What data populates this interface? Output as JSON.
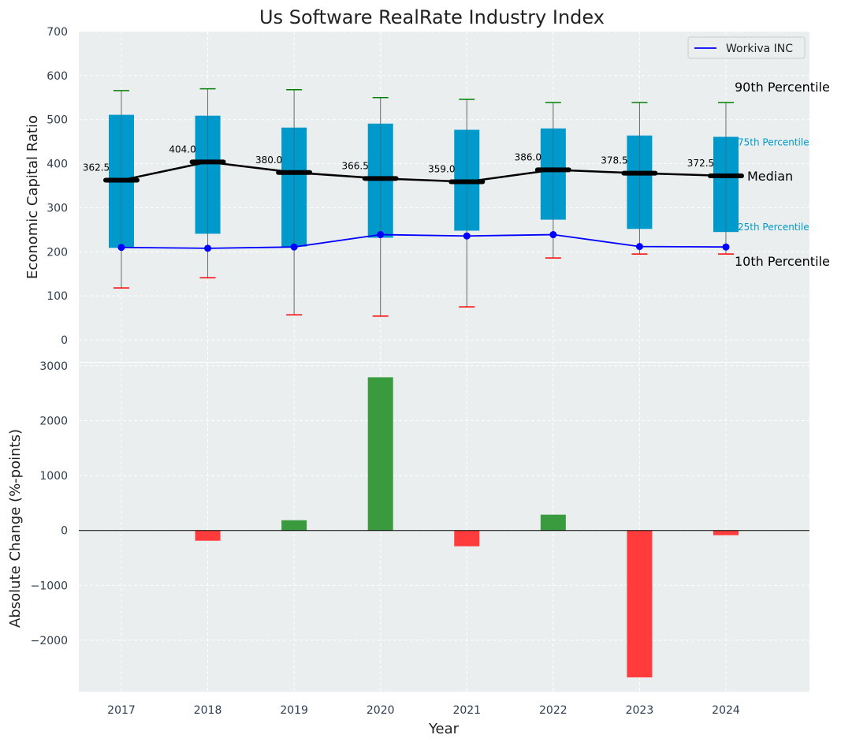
{
  "chart_data": [
    {
      "type": "box",
      "title": "Us Software RealRate Industry Index",
      "ylabel": "Economic Capital Ratio",
      "ylim": [
        -50,
        700
      ],
      "yticks": [
        0,
        100,
        200,
        300,
        400,
        500,
        600,
        700
      ],
      "categories": [
        "2017",
        "2018",
        "2019",
        "2020",
        "2021",
        "2022",
        "2023",
        "2024"
      ],
      "p10": [
        118,
        141,
        57,
        54,
        75,
        186,
        195,
        195
      ],
      "p25": [
        209,
        241,
        212,
        232,
        248,
        273,
        252,
        245
      ],
      "median": [
        362.5,
        404.0,
        380.0,
        366.5,
        359.0,
        386.0,
        378.5,
        372.5
      ],
      "median_labels": [
        "362.5",
        "404.0",
        "380.0",
        "366.5",
        "359.0",
        "386.0",
        "378.5",
        "372.5"
      ],
      "p75": [
        511,
        509,
        482,
        491,
        477,
        480,
        464,
        461
      ],
      "p90": [
        566,
        570,
        568,
        550,
        546,
        539,
        539,
        539
      ],
      "series": [
        {
          "name": "Workiva INC",
          "values": [
            210,
            208,
            211,
            239,
            236,
            239,
            212,
            211
          ],
          "color": "#0000ff"
        }
      ],
      "legend": "top-right",
      "annotations": {
        "p90": "90th Percentile",
        "p75": "75th Percentile",
        "median": "Median",
        "p25": "25th Percentile",
        "p10": "10th Percentile"
      },
      "colors": {
        "box": "#0099cc",
        "median": "#000000",
        "p90": "#008000",
        "p10": "#ff0000"
      }
    },
    {
      "type": "bar",
      "xlabel": "Year",
      "ylabel": "Absolute Change (%-points)",
      "ylim": [
        -2935,
        3070
      ],
      "yticks": [
        -2000,
        -1000,
        0,
        1000,
        2000,
        3000
      ],
      "ytick_labels": [
        "−2000",
        "−1000",
        "0",
        "1000",
        "2000",
        "3000"
      ],
      "categories": [
        "2017",
        "2018",
        "2019",
        "2020",
        "2021",
        "2022",
        "2023",
        "2024"
      ],
      "values": [
        0,
        -187,
        187,
        2791,
        -288,
        288,
        -2676,
        -86
      ],
      "colors": {
        "positive": "#3a9b3e",
        "negative": "#ff3b3b"
      }
    }
  ]
}
